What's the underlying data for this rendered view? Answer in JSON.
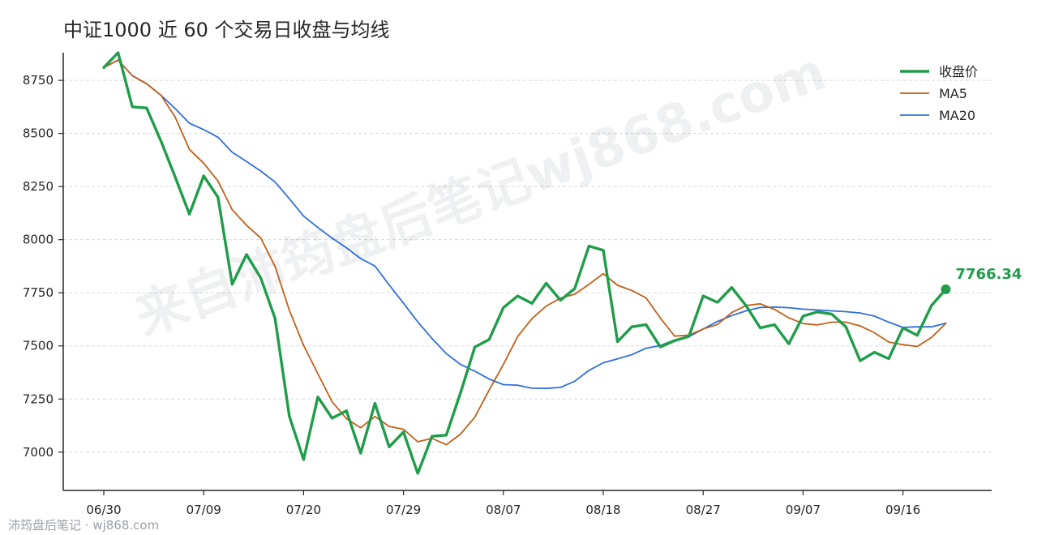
{
  "chart_data": {
    "type": "line",
    "title": "中证1000 近 60 个交易日收盘与均线",
    "xlabel": "",
    "ylabel": "",
    "ylim": [
      6820,
      8880
    ],
    "yticks": [
      7000,
      7250,
      7500,
      7750,
      8000,
      8250,
      8500,
      8750
    ],
    "ytick_labels": [
      "7000",
      "7250",
      "7500",
      "7750",
      "8000",
      "8250",
      "8500",
      "8750"
    ],
    "xtick_labels": [
      "06/30",
      "07/09",
      "07/20",
      "07/29",
      "08/07",
      "08/18",
      "08/27",
      "09/07",
      "09/16"
    ],
    "xtick_positions": [
      0,
      7,
      14,
      21,
      28,
      35,
      42,
      49,
      56
    ],
    "grid": "horizontal dashed",
    "legend_position": "top-right",
    "series": [
      {
        "name": "收盘价",
        "color": "#1f9d4a",
        "values": [
          8810,
          8880,
          8625,
          8620,
          8465,
          8295,
          8120,
          8300,
          8200,
          7790,
          7930,
          7820,
          7630,
          7170,
          6965,
          7260,
          7160,
          7195,
          6995,
          7230,
          7025,
          7095,
          6900,
          7075,
          7080,
          7280,
          7495,
          7530,
          7680,
          7735,
          7700,
          7795,
          7715,
          7770,
          7970,
          7950,
          7520,
          7590,
          7600,
          7495,
          7525,
          7545,
          7735,
          7705,
          7775,
          7690,
          7585,
          7600,
          7510,
          7640,
          7660,
          7650,
          7590,
          7430,
          7470,
          7440,
          7585,
          7550,
          7690,
          7766.34
        ]
      },
      {
        "name": "MA5",
        "color": "#c0601a",
        "values": [
          8810,
          8845,
          8772,
          8734,
          8680,
          8577,
          8425,
          8360,
          8276,
          8141,
          8068,
          8008,
          7874,
          7668,
          7503,
          7369,
          7237,
          7158,
          7115,
          7168,
          7121,
          7108,
          7049,
          7065,
          7035,
          7085,
          7165,
          7292,
          7413,
          7544,
          7628,
          7688,
          7725,
          7743,
          7790,
          7840,
          7785,
          7761,
          7726,
          7631,
          7546,
          7551,
          7580,
          7601,
          7657,
          7690,
          7698,
          7672,
          7632,
          7605,
          7599,
          7612,
          7612,
          7594,
          7562,
          7518,
          7506,
          7497,
          7540,
          7606
        ]
      },
      {
        "name": "MA20",
        "color": "#2f6fdb",
        "values": [
          8810,
          8845,
          8772,
          8734,
          8680,
          8617,
          8548,
          8518,
          8482,
          8412,
          8368,
          8323,
          8271,
          8193,
          8111,
          8057,
          8007,
          7962,
          7911,
          7876,
          7787,
          7701,
          7613,
          7535,
          7464,
          7413,
          7381,
          7344,
          7318,
          7315,
          7301,
          7300,
          7305,
          7334,
          7385,
          7421,
          7439,
          7459,
          7489,
          7502,
          7528,
          7543,
          7580,
          7615,
          7643,
          7665,
          7681,
          7683,
          7680,
          7673,
          7669,
          7665,
          7661,
          7655,
          7640,
          7612,
          7587,
          7590,
          7590,
          7607
        ]
      }
    ],
    "last_value_label": "7766.34",
    "watermark": "来自沛筠盘后笔记wj868.com",
    "credit": "沛筠盘后笔记 · wj868.com"
  }
}
